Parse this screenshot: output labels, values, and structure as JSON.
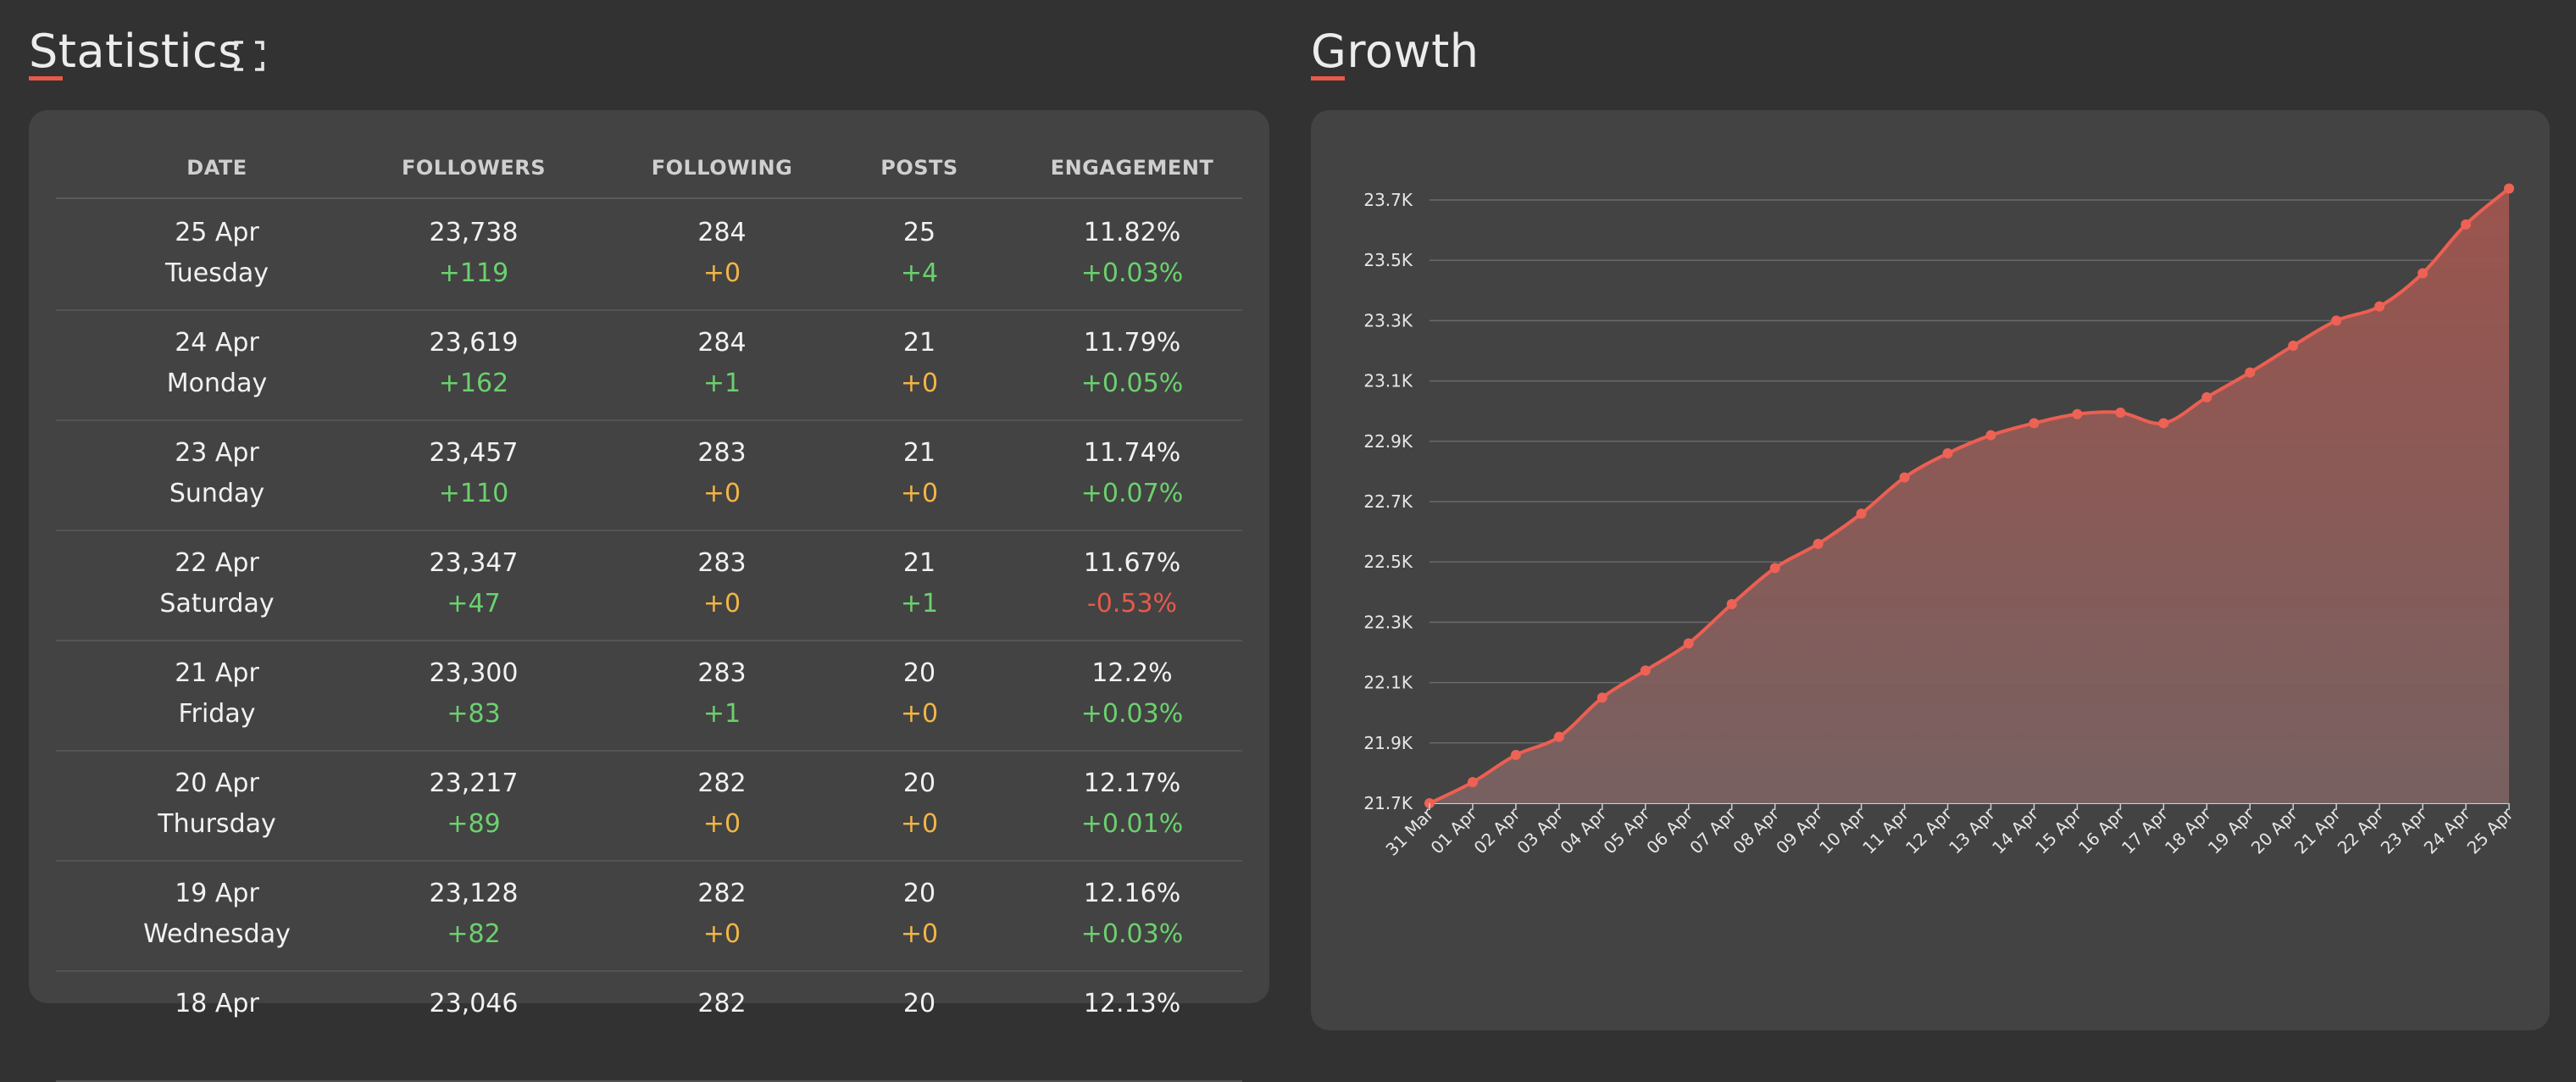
{
  "statistics": {
    "title": "Statistics",
    "expand_icon": "expand-icon",
    "columns": [
      "DATE",
      "FOLLOWERS",
      "FOLLOWING",
      "POSTS",
      "ENGAGEMENT"
    ],
    "rows": [
      {
        "date": "25 Apr",
        "day": "Tuesday",
        "followers": "23,738",
        "followers_delta": "+119",
        "following": "284",
        "following_delta": "+0",
        "posts": "25",
        "posts_delta": "+4",
        "engagement": "11.82%",
        "engagement_delta": "+0.03%"
      },
      {
        "date": "24 Apr",
        "day": "Monday",
        "followers": "23,619",
        "followers_delta": "+162",
        "following": "284",
        "following_delta": "+1",
        "posts": "21",
        "posts_delta": "+0",
        "engagement": "11.79%",
        "engagement_delta": "+0.05%"
      },
      {
        "date": "23 Apr",
        "day": "Sunday",
        "followers": "23,457",
        "followers_delta": "+110",
        "following": "283",
        "following_delta": "+0",
        "posts": "21",
        "posts_delta": "+0",
        "engagement": "11.74%",
        "engagement_delta": "+0.07%"
      },
      {
        "date": "22 Apr",
        "day": "Saturday",
        "followers": "23,347",
        "followers_delta": "+47",
        "following": "283",
        "following_delta": "+0",
        "posts": "21",
        "posts_delta": "+1",
        "engagement": "11.67%",
        "engagement_delta": "-0.53%"
      },
      {
        "date": "21 Apr",
        "day": "Friday",
        "followers": "23,300",
        "followers_delta": "+83",
        "following": "283",
        "following_delta": "+1",
        "posts": "20",
        "posts_delta": "+0",
        "engagement": "12.2%",
        "engagement_delta": "+0.03%"
      },
      {
        "date": "20 Apr",
        "day": "Thursday",
        "followers": "23,217",
        "followers_delta": "+89",
        "following": "282",
        "following_delta": "+0",
        "posts": "20",
        "posts_delta": "+0",
        "engagement": "12.17%",
        "engagement_delta": "+0.01%"
      },
      {
        "date": "19 Apr",
        "day": "Wednesday",
        "followers": "23,128",
        "followers_delta": "+82",
        "following": "282",
        "following_delta": "+0",
        "posts": "20",
        "posts_delta": "+0",
        "engagement": "12.16%",
        "engagement_delta": "+0.03%"
      },
      {
        "date": "18 Apr",
        "day": "",
        "followers": "23,046",
        "followers_delta": "",
        "following": "282",
        "following_delta": "",
        "posts": "20",
        "posts_delta": "",
        "engagement": "12.13%",
        "engagement_delta": ""
      }
    ]
  },
  "growth": {
    "title": "Growth"
  },
  "colors": {
    "accent": "#e8594b",
    "positive": "#6bd16e",
    "neutral": "#f2b545",
    "negative": "#e8594b",
    "panel": "#434343",
    "background": "#323232"
  },
  "chart_data": {
    "type": "area",
    "title": "",
    "xlabel": "",
    "ylabel": "",
    "grid": true,
    "legend": "none",
    "x": [
      "31 Mar",
      "01 Apr",
      "02 Apr",
      "03 Apr",
      "04 Apr",
      "05 Apr",
      "06 Apr",
      "07 Apr",
      "08 Apr",
      "09 Apr",
      "10 Apr",
      "11 Apr",
      "12 Apr",
      "13 Apr",
      "14 Apr",
      "15 Apr",
      "16 Apr",
      "17 Apr",
      "18 Apr",
      "19 Apr",
      "20 Apr",
      "21 Apr",
      "22 Apr",
      "23 Apr",
      "24 Apr",
      "25 Apr"
    ],
    "y_ticks": [
      21700,
      21900,
      22100,
      22300,
      22500,
      22700,
      22900,
      23100,
      23300,
      23500,
      23700
    ],
    "y_tick_labels": [
      "21.7K",
      "21.9K",
      "22.1K",
      "22.3K",
      "22.5K",
      "22.7K",
      "22.9K",
      "23.1K",
      "23.3K",
      "23.5K",
      "23.7K"
    ],
    "ylim": [
      21700,
      23738
    ],
    "series": [
      {
        "values": [
          21700,
          21770,
          21860,
          21920,
          22050,
          22140,
          22230,
          22360,
          22480,
          22560,
          22660,
          22780,
          22860,
          22920,
          22960,
          22990,
          22995,
          22960,
          23046,
          23128,
          23217,
          23300,
          23347,
          23457,
          23619,
          23738
        ]
      }
    ]
  }
}
